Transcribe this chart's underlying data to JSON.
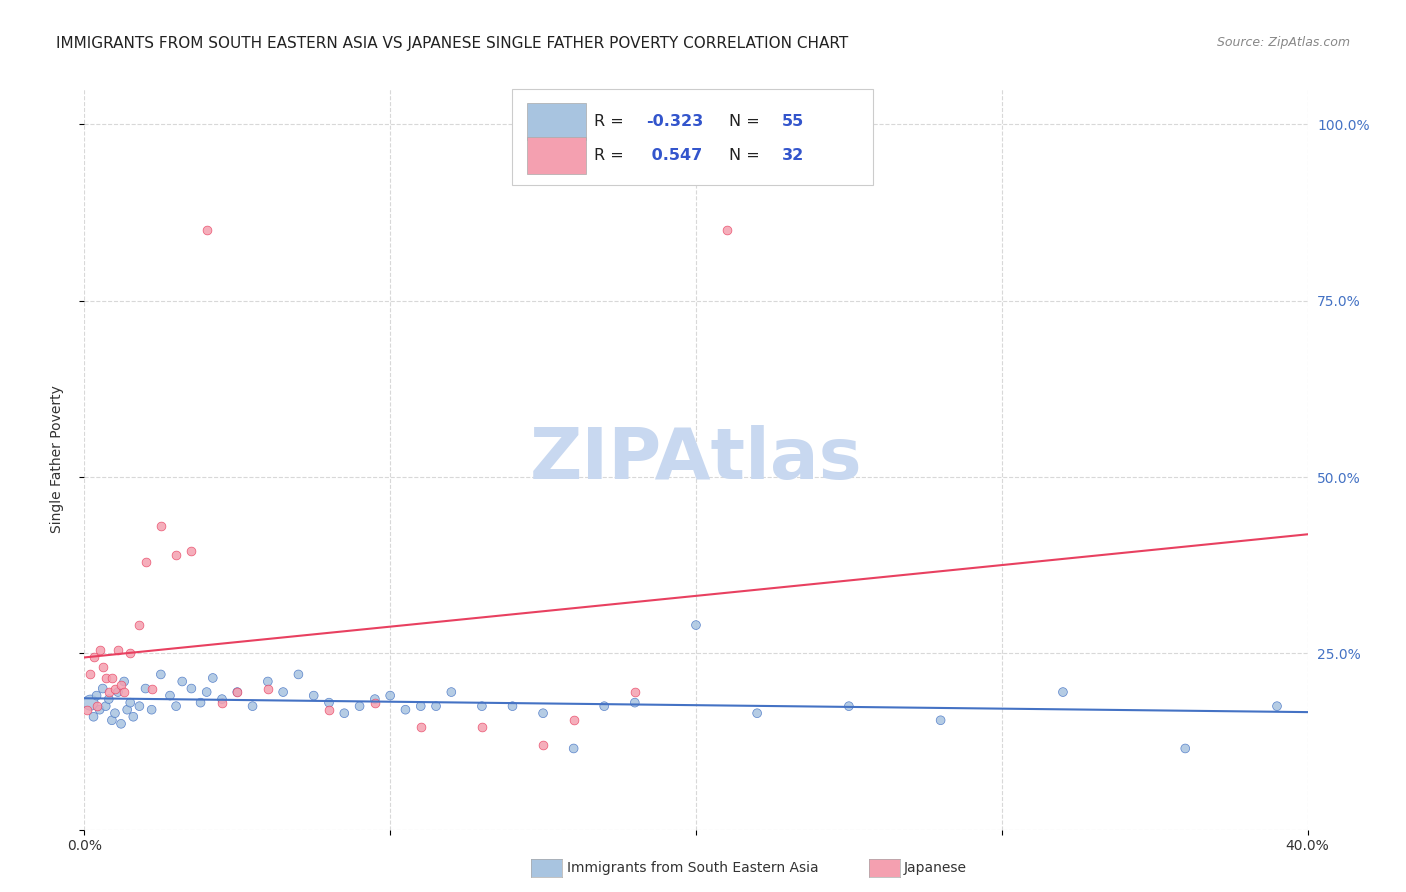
{
  "title": "IMMIGRANTS FROM SOUTH EASTERN ASIA VS JAPANESE SINGLE FATHER POVERTY CORRELATION CHART",
  "source": "Source: ZipAtlas.com",
  "ylabel": "Single Father Poverty",
  "xlim": [
    0.0,
    0.4
  ],
  "ylim": [
    0.0,
    1.05
  ],
  "color_blue": "#a8c4e0",
  "color_pink": "#f4a0b0",
  "line_blue": "#4472c4",
  "line_pink": "#e84060",
  "watermark": "ZIPAtlas",
  "watermark_color": "#c8d8f0",
  "background": "#ffffff",
  "grid_color": "#d8d8d8",
  "blue_scatter_x": [
    0.002,
    0.003,
    0.004,
    0.005,
    0.006,
    0.007,
    0.008,
    0.009,
    0.01,
    0.011,
    0.012,
    0.013,
    0.014,
    0.015,
    0.016,
    0.018,
    0.02,
    0.022,
    0.025,
    0.028,
    0.03,
    0.032,
    0.035,
    0.038,
    0.04,
    0.042,
    0.045,
    0.05,
    0.055,
    0.06,
    0.065,
    0.07,
    0.075,
    0.08,
    0.085,
    0.09,
    0.095,
    0.1,
    0.105,
    0.11,
    0.115,
    0.12,
    0.13,
    0.14,
    0.15,
    0.16,
    0.17,
    0.18,
    0.2,
    0.22,
    0.25,
    0.28,
    0.32,
    0.36,
    0.39
  ],
  "blue_scatter_y": [
    0.18,
    0.16,
    0.19,
    0.17,
    0.2,
    0.175,
    0.185,
    0.155,
    0.165,
    0.195,
    0.15,
    0.21,
    0.17,
    0.18,
    0.16,
    0.175,
    0.2,
    0.17,
    0.22,
    0.19,
    0.175,
    0.21,
    0.2,
    0.18,
    0.195,
    0.215,
    0.185,
    0.195,
    0.175,
    0.21,
    0.195,
    0.22,
    0.19,
    0.18,
    0.165,
    0.175,
    0.185,
    0.19,
    0.17,
    0.175,
    0.175,
    0.195,
    0.175,
    0.175,
    0.165,
    0.115,
    0.175,
    0.18,
    0.29,
    0.165,
    0.175,
    0.155,
    0.195,
    0.115,
    0.175
  ],
  "pink_scatter_x": [
    0.001,
    0.002,
    0.003,
    0.004,
    0.005,
    0.006,
    0.007,
    0.008,
    0.009,
    0.01,
    0.011,
    0.012,
    0.013,
    0.015,
    0.018,
    0.02,
    0.022,
    0.025,
    0.03,
    0.035,
    0.04,
    0.045,
    0.05,
    0.06,
    0.08,
    0.095,
    0.11,
    0.13,
    0.15,
    0.18,
    0.21,
    0.16
  ],
  "pink_scatter_y": [
    0.17,
    0.22,
    0.245,
    0.175,
    0.255,
    0.23,
    0.215,
    0.195,
    0.215,
    0.2,
    0.255,
    0.205,
    0.195,
    0.25,
    0.29,
    0.38,
    0.2,
    0.43,
    0.39,
    0.395,
    0.85,
    0.18,
    0.195,
    0.2,
    0.17,
    0.18,
    0.145,
    0.145,
    0.12,
    0.195,
    0.85,
    0.155
  ]
}
